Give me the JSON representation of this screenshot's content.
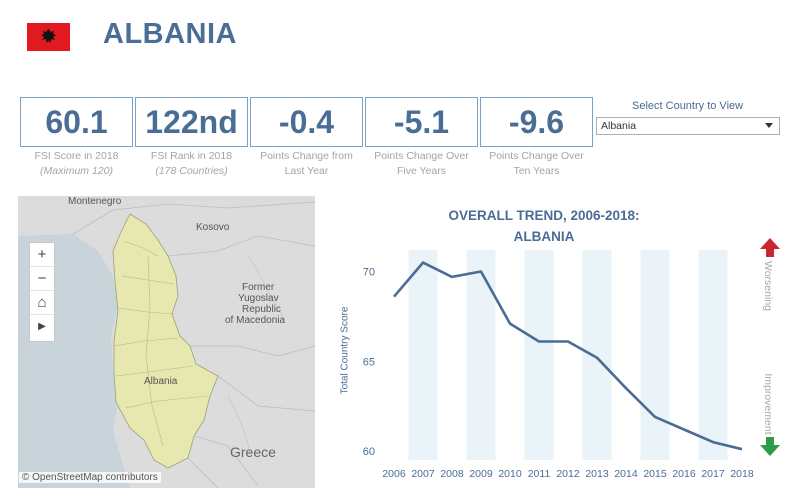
{
  "header": {
    "country": "ALBANIA",
    "flag_color": "#e01a1f"
  },
  "kpis": [
    {
      "value": "60.1",
      "label1": "FSI Score in 2018",
      "label2": "(Maximum 120)"
    },
    {
      "value": "122nd",
      "label1": "FSI Rank in 2018",
      "label2": "(178 Countries)"
    },
    {
      "value": "-0.4",
      "label1": "Points Change from",
      "label2": "Last Year"
    },
    {
      "value": "-5.1",
      "label1": "Points Change Over",
      "label2": "Five Years"
    },
    {
      "value": "-9.6",
      "label1": "Points Change Over",
      "label2": "Ten Years"
    }
  ],
  "selector": {
    "label": "Select Country to View",
    "value": "Albania"
  },
  "map": {
    "labels": {
      "montenegro": "Montenegro",
      "kosovo": "Kosovo",
      "macedonia_1": "Former",
      "macedonia_2": "Yugoslav",
      "macedonia_3": "Republic",
      "macedonia_4": "of Macedonia",
      "albania": "Albania",
      "greece": "Greece"
    },
    "controls": {
      "zoom_in": "+",
      "zoom_out": "−",
      "home": "⌂",
      "play": "▶"
    },
    "attribution": "© OpenStreetMap contributors",
    "colors": {
      "land": "#dcdcdc",
      "sea": "#c8d4d9",
      "albania": "#e6e8b0"
    }
  },
  "chart_title": {
    "line1": "OVERALL TREND, 2006-2018:",
    "line2": "ALBANIA"
  },
  "side_labels": {
    "top": "Worsening",
    "bottom": "Improvement"
  },
  "chart_data": {
    "type": "line",
    "title": "OVERALL TREND, 2006-2018: ALBANIA",
    "ylabel": "Total Country Score",
    "x": [
      "2006",
      "2007",
      "2008",
      "2009",
      "2010",
      "2011",
      "2012",
      "2013",
      "2014",
      "2015",
      "2016",
      "2017",
      "2018"
    ],
    "series": [
      {
        "values": [
          68.6,
          70.5,
          69.7,
          70.0,
          67.1,
          66.1,
          66.1,
          65.2,
          63.5,
          61.9,
          61.2,
          60.5,
          60.1
        ]
      }
    ],
    "yticks": [
      60,
      65,
      70
    ],
    "ylim": [
      59.5,
      71.2
    ],
    "color": "#4a6c95",
    "band_color": "#eaf3f8"
  }
}
